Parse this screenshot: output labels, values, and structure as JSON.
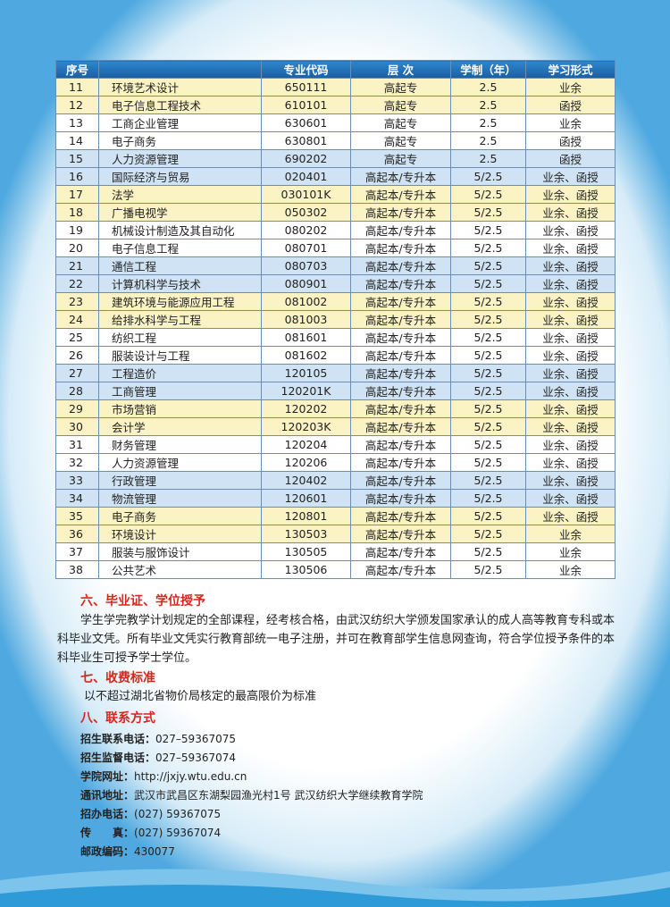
{
  "table": {
    "header": [
      "序号",
      "",
      "专业代码",
      "层 次",
      "学制（年）",
      "学习形式"
    ],
    "rows": [
      [
        "11",
        "环境艺术设计",
        "650111",
        "高起专",
        "2.5",
        "业余"
      ],
      [
        "12",
        "电子信息工程技术",
        "610101",
        "高起专",
        "2.5",
        "函授"
      ],
      [
        "13",
        "工商企业管理",
        "630601",
        "高起专",
        "2.5",
        "业余"
      ],
      [
        "14",
        "电子商务",
        "630801",
        "高起专",
        "2.5",
        "函授"
      ],
      [
        "15",
        "人力资源管理",
        "690202",
        "高起专",
        "2.5",
        "函授"
      ],
      [
        "16",
        "国际经济与贸易",
        "020401",
        "高起本/专升本",
        "5/2.5",
        "业余、函授"
      ],
      [
        "17",
        "法学",
        "030101K",
        "高起本/专升本",
        "5/2.5",
        "业余、函授"
      ],
      [
        "18",
        "广播电视学",
        "050302",
        "高起本/专升本",
        "5/2.5",
        "业余、函授"
      ],
      [
        "19",
        "机械设计制造及其自动化",
        "080202",
        "高起本/专升本",
        "5/2.5",
        "业余、函授"
      ],
      [
        "20",
        "电子信息工程",
        "080701",
        "高起本/专升本",
        "5/2.5",
        "业余、函授"
      ],
      [
        "21",
        "通信工程",
        "080703",
        "高起本/专升本",
        "5/2.5",
        "业余、函授"
      ],
      [
        "22",
        "计算机科学与技术",
        "080901",
        "高起本/专升本",
        "5/2.5",
        "业余、函授"
      ],
      [
        "23",
        "建筑环境与能源应用工程",
        "081002",
        "高起本/专升本",
        "5/2.5",
        "业余、函授"
      ],
      [
        "24",
        "给排水科学与工程",
        "081003",
        "高起本/专升本",
        "5/2.5",
        "业余、函授"
      ],
      [
        "25",
        "纺织工程",
        "081601",
        "高起本/专升本",
        "5/2.5",
        "业余、函授"
      ],
      [
        "26",
        "服装设计与工程",
        "081602",
        "高起本/专升本",
        "5/2.5",
        "业余、函授"
      ],
      [
        "27",
        "工程造价",
        "120105",
        "高起本/专升本",
        "5/2.5",
        "业余、函授"
      ],
      [
        "28",
        "工商管理",
        "120201K",
        "高起本/专升本",
        "5/2.5",
        "业余、函授"
      ],
      [
        "29",
        "市场营销",
        "120202",
        "高起本/专升本",
        "5/2.5",
        "业余、函授"
      ],
      [
        "30",
        "会计学",
        "120203K",
        "高起本/专升本",
        "5/2.5",
        "业余、函授"
      ],
      [
        "31",
        "财务管理",
        "120204",
        "高起本/专升本",
        "5/2.5",
        "业余、函授"
      ],
      [
        "32",
        "人力资源管理",
        "120206",
        "高起本/专升本",
        "5/2.5",
        "业余、函授"
      ],
      [
        "33",
        "行政管理",
        "120402",
        "高起本/专升本",
        "5/2.5",
        "业余、函授"
      ],
      [
        "34",
        "物流管理",
        "120601",
        "高起本/专升本",
        "5/2.5",
        "业余、函授"
      ],
      [
        "35",
        "电子商务",
        "120801",
        "高起本/专升本",
        "5/2.5",
        "业余、函授"
      ],
      [
        "36",
        "环境设计",
        "130503",
        "高起本/专升本",
        "5/2.5",
        "业余"
      ],
      [
        "37",
        "服装与服饰设计",
        "130505",
        "高起本/专升本",
        "5/2.5",
        "业余"
      ],
      [
        "38",
        "公共艺术",
        "130506",
        "高起本/专升本",
        "5/2.5",
        "业余"
      ]
    ]
  },
  "section6": {
    "title": "六、毕业证、学位授予",
    "body": "学生学完教学计划规定的全部课程，经考核合格，由武汉纺织大学颁发国家承认的成人高等教育专科或本科毕业文凭。所有毕业文凭实行教育部统一电子注册，并可在教育部学生信息网查询，符合学位授予条件的本科毕业生可授予学士学位。"
  },
  "section7": {
    "title": "七、收费标准",
    "body": "以不超过湖北省物价局核定的最高限价为标准"
  },
  "section8": {
    "title": "八、联系方式",
    "contacts": [
      {
        "label": "招生联系电话：",
        "value": "027–59367075"
      },
      {
        "label": "招生监督电话：",
        "value": "027–59367074"
      },
      {
        "label": "学院网址：",
        "value": "http://jxjy.wtu.edu.cn"
      },
      {
        "label": "通讯地址：",
        "value": "武汉市武昌区东湖梨园渔光村1号 武汉纺织大学继续教育学院"
      },
      {
        "label": "招办电话：",
        "value": "(027) 59367075"
      },
      {
        "label": "传　　真：",
        "value": "(027) 59367074"
      },
      {
        "label": "邮政编码：",
        "value": "430077"
      }
    ]
  }
}
